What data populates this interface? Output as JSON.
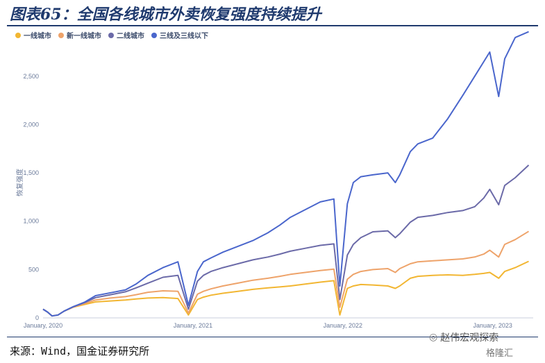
{
  "title": "图表65：全国各线城市外卖恢复强度持续提升",
  "source": "来源：Wind，国金证券研究所",
  "watermark": {
    "account": "赵伟宏观探索",
    "brand": "格隆汇"
  },
  "colors": {
    "tier1": "#f2b632",
    "new_tier1": "#eea36a",
    "tier2": "#6b6aa8",
    "tier3": "#4a66cc"
  },
  "chart_data": {
    "type": "line",
    "title": "",
    "ylabel": "恢复强度",
    "ylim": [
      0,
      2800
    ],
    "yticks": [
      "0",
      "500",
      "1,000",
      "1,500",
      "2,000",
      "2,500"
    ],
    "ytick_values": [
      0,
      500,
      1000,
      1500,
      2000,
      2500
    ],
    "xlim": [
      2020.0,
      2023.27
    ],
    "xticks": [
      "January, 2020",
      "January, 2021",
      "January, 2022",
      "January, 2023"
    ],
    "xtick_values": [
      2020.0,
      2021.0,
      2022.0,
      2023.0
    ],
    "x": [
      2020.0,
      2020.03,
      2020.06,
      2020.1,
      2020.14,
      2020.2,
      2020.28,
      2020.35,
      2020.45,
      2020.55,
      2020.62,
      2020.7,
      2020.8,
      2020.9,
      2020.97,
      2021.03,
      2021.07,
      2021.12,
      2021.2,
      2021.3,
      2021.4,
      2021.5,
      2021.58,
      2021.65,
      2021.75,
      2021.85,
      2021.94,
      2021.98,
      2022.03,
      2022.07,
      2022.12,
      2022.2,
      2022.3,
      2022.35,
      2022.38,
      2022.45,
      2022.5,
      2022.6,
      2022.7,
      2022.8,
      2022.88,
      2022.94,
      2022.98,
      2023.04,
      2023.08,
      2023.15,
      2023.24
    ],
    "series": [
      {
        "name": "一线城市",
        "values": [
          90,
          60,
          20,
          30,
          70,
          110,
          140,
          165,
          175,
          185,
          195,
          205,
          210,
          200,
          30,
          190,
          215,
          235,
          255,
          275,
          295,
          310,
          320,
          330,
          350,
          370,
          385,
          30,
          305,
          330,
          345,
          340,
          330,
          305,
          330,
          410,
          430,
          440,
          445,
          440,
          450,
          460,
          470,
          410,
          480,
          520,
          585
        ]
      },
      {
        "name": "新一线城市",
        "values": [
          90,
          60,
          20,
          30,
          70,
          110,
          150,
          185,
          205,
          220,
          240,
          265,
          280,
          275,
          50,
          245,
          275,
          300,
          330,
          360,
          390,
          410,
          430,
          450,
          470,
          490,
          505,
          110,
          400,
          450,
          480,
          500,
          510,
          470,
          510,
          560,
          580,
          590,
          600,
          610,
          630,
          660,
          700,
          630,
          760,
          810,
          895
        ]
      },
      {
        "name": "二线城市",
        "values": [
          90,
          60,
          20,
          30,
          70,
          115,
          160,
          210,
          240,
          270,
          310,
          360,
          420,
          440,
          90,
          380,
          440,
          480,
          520,
          560,
          600,
          630,
          660,
          690,
          720,
          750,
          765,
          190,
          650,
          760,
          830,
          890,
          900,
          830,
          870,
          990,
          1040,
          1060,
          1090,
          1110,
          1150,
          1240,
          1330,
          1170,
          1370,
          1450,
          1580
        ]
      },
      {
        "name": "三线及三线以下",
        "values": [
          90,
          60,
          20,
          30,
          70,
          115,
          165,
          230,
          260,
          290,
          350,
          440,
          520,
          580,
          130,
          480,
          580,
          620,
          680,
          740,
          800,
          880,
          960,
          1040,
          1120,
          1200,
          1230,
          330,
          1180,
          1400,
          1460,
          1480,
          1500,
          1400,
          1480,
          1720,
          1800,
          1860,
          2060,
          2300,
          2500,
          2650,
          2750,
          2290,
          2680,
          2900,
          2960
        ]
      }
    ]
  }
}
